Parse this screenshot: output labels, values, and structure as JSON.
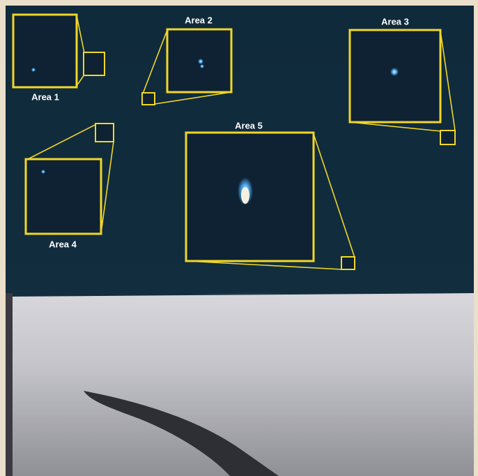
{
  "areas": [
    {
      "label": "Area 1"
    },
    {
      "label": "Area 2"
    },
    {
      "label": "Area 3"
    },
    {
      "label": "Area 4"
    },
    {
      "label": "Area 5"
    }
  ]
}
